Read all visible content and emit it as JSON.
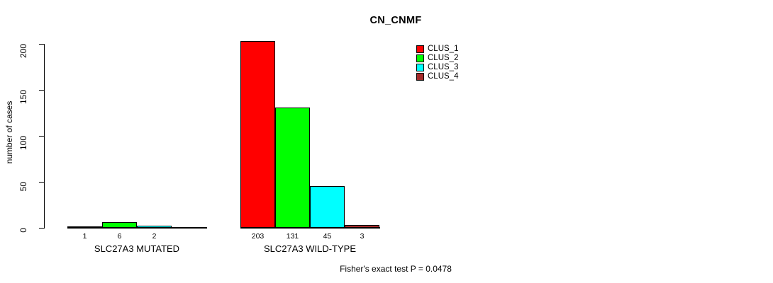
{
  "chart_data": {
    "type": "bar",
    "title": "CN_CNMF",
    "ylabel": "number of cases",
    "ylim": [
      0,
      200
    ],
    "yticks": [
      0,
      50,
      100,
      150,
      200
    ],
    "grid": false,
    "legend_position": "top-right",
    "categories": [
      "SLC27A3 MUTATED",
      "SLC27A3 WILD-TYPE"
    ],
    "series": [
      {
        "name": "CLUS_1",
        "color": "#FF0000",
        "values": [
          1,
          203
        ]
      },
      {
        "name": "CLUS_2",
        "color": "#00FF00",
        "values": [
          6,
          131
        ]
      },
      {
        "name": "CLUS_3",
        "color": "#00FFFF",
        "values": [
          2,
          45
        ]
      },
      {
        "name": "CLUS_4",
        "color": "#A52A2A",
        "values": [
          0,
          3
        ]
      }
    ],
    "bar_value_labels": [
      [
        "1",
        "6",
        "2",
        ""
      ],
      [
        "203",
        "131",
        "45",
        "3"
      ]
    ],
    "annotation": "Fisher's exact test P = 0.0478"
  }
}
